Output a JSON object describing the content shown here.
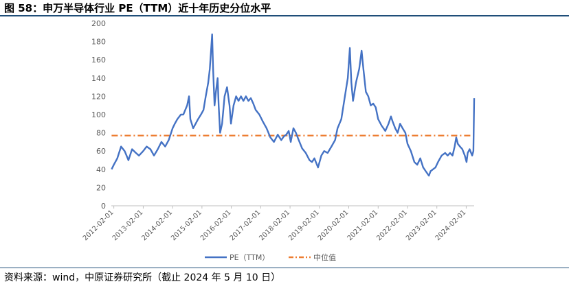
{
  "header": {
    "title": "图 58：申万半导体行业 PE（TTM）近十年历史分位水平"
  },
  "footer": {
    "source": "资料来源：wind，中原证券研究所（截止 2024 年 5 月 10 日）"
  },
  "colors": {
    "series_pe": "#4472c4",
    "series_median": "#ed7d31",
    "axis": "#bfbfbf",
    "text": "#595959",
    "title_rule": "#1f4e79"
  },
  "chart_data": {
    "type": "line",
    "title": "",
    "xlabel": "",
    "ylabel": "",
    "ylim": [
      0,
      200
    ],
    "yticks": [
      0,
      20,
      40,
      60,
      80,
      100,
      120,
      140,
      160,
      180,
      200
    ],
    "xlim": [
      "2012-01-01",
      "2024-05-10"
    ],
    "xticks": [
      "2012-02-01",
      "2013-02-01",
      "2014-02-01",
      "2015-02-01",
      "2016-02-01",
      "2017-02-01",
      "2018-02-01",
      "2019-02-01",
      "2020-02-01",
      "2021-02-01",
      "2022-02-01",
      "2023-02-01",
      "2024-02-01"
    ],
    "legend_position": "bottom",
    "grid": false,
    "series": [
      {
        "name": "PE（TTM）",
        "style": "solid",
        "points": [
          [
            "2012-01-04",
            40
          ],
          [
            "2012-02-01",
            45
          ],
          [
            "2012-03-15",
            52
          ],
          [
            "2012-05-01",
            65
          ],
          [
            "2012-06-15",
            60
          ],
          [
            "2012-08-01",
            50
          ],
          [
            "2012-09-15",
            62
          ],
          [
            "2012-11-01",
            58
          ],
          [
            "2012-12-10",
            55
          ],
          [
            "2013-02-01",
            60
          ],
          [
            "2013-03-15",
            65
          ],
          [
            "2013-05-01",
            62
          ],
          [
            "2013-06-15",
            55
          ],
          [
            "2013-08-01",
            62
          ],
          [
            "2013-09-15",
            70
          ],
          [
            "2013-11-01",
            65
          ],
          [
            "2013-12-15",
            72
          ],
          [
            "2014-02-01",
            85
          ],
          [
            "2014-03-01",
            90
          ],
          [
            "2014-04-01",
            95
          ],
          [
            "2014-05-15",
            100
          ],
          [
            "2014-06-15",
            100
          ],
          [
            "2014-08-01",
            110
          ],
          [
            "2014-08-25",
            120
          ],
          [
            "2014-09-10",
            95
          ],
          [
            "2014-10-15",
            85
          ],
          [
            "2014-11-15",
            90
          ],
          [
            "2014-12-15",
            95
          ],
          [
            "2015-01-20",
            100
          ],
          [
            "2015-02-20",
            105
          ],
          [
            "2015-03-20",
            120
          ],
          [
            "2015-04-20",
            135
          ],
          [
            "2015-05-10",
            150
          ],
          [
            "2015-05-25",
            170
          ],
          [
            "2015-06-08",
            188
          ],
          [
            "2015-06-20",
            150
          ],
          [
            "2015-07-08",
            110
          ],
          [
            "2015-07-25",
            125
          ],
          [
            "2015-08-15",
            140
          ],
          [
            "2015-08-28",
            110
          ],
          [
            "2015-09-15",
            80
          ],
          [
            "2015-10-10",
            90
          ],
          [
            "2015-11-10",
            120
          ],
          [
            "2015-12-10",
            130
          ],
          [
            "2016-01-10",
            110
          ],
          [
            "2016-01-28",
            90
          ],
          [
            "2016-03-01",
            110
          ],
          [
            "2016-04-01",
            120
          ],
          [
            "2016-05-01",
            115
          ],
          [
            "2016-06-01",
            120
          ],
          [
            "2016-07-01",
            115
          ],
          [
            "2016-08-01",
            120
          ],
          [
            "2016-09-01",
            115
          ],
          [
            "2016-10-01",
            118
          ],
          [
            "2016-11-01",
            112
          ],
          [
            "2016-12-01",
            105
          ],
          [
            "2017-01-15",
            100
          ],
          [
            "2017-03-01",
            92
          ],
          [
            "2017-04-15",
            85
          ],
          [
            "2017-06-01",
            75
          ],
          [
            "2017-07-15",
            70
          ],
          [
            "2017-09-01",
            78
          ],
          [
            "2017-10-15",
            72
          ],
          [
            "2017-11-15",
            76
          ],
          [
            "2017-12-15",
            78
          ],
          [
            "2018-01-15",
            82
          ],
          [
            "2018-02-10",
            70
          ],
          [
            "2018-03-15",
            85
          ],
          [
            "2018-04-15",
            80
          ],
          [
            "2018-05-20",
            72
          ],
          [
            "2018-07-01",
            63
          ],
          [
            "2018-08-15",
            58
          ],
          [
            "2018-10-01",
            50
          ],
          [
            "2018-11-01",
            48
          ],
          [
            "2018-12-01",
            52
          ],
          [
            "2019-01-15",
            42
          ],
          [
            "2019-02-25",
            55
          ],
          [
            "2019-04-01",
            60
          ],
          [
            "2019-05-15",
            58
          ],
          [
            "2019-07-01",
            65
          ],
          [
            "2019-08-15",
            72
          ],
          [
            "2019-09-15",
            85
          ],
          [
            "2019-11-01",
            95
          ],
          [
            "2019-12-15",
            120
          ],
          [
            "2020-01-20",
            140
          ],
          [
            "2020-02-15",
            173
          ],
          [
            "2020-03-05",
            135
          ],
          [
            "2020-03-25",
            115
          ],
          [
            "2020-05-01",
            135
          ],
          [
            "2020-06-10",
            150
          ],
          [
            "2020-07-10",
            170
          ],
          [
            "2020-08-01",
            150
          ],
          [
            "2020-09-01",
            125
          ],
          [
            "2020-10-01",
            120
          ],
          [
            "2020-11-01",
            110
          ],
          [
            "2020-12-01",
            112
          ],
          [
            "2021-01-01",
            108
          ],
          [
            "2021-02-01",
            95
          ],
          [
            "2021-03-15",
            88
          ],
          [
            "2021-05-01",
            82
          ],
          [
            "2021-06-10",
            90
          ],
          [
            "2021-07-10",
            98
          ],
          [
            "2021-08-01",
            92
          ],
          [
            "2021-09-01",
            85
          ],
          [
            "2021-10-01",
            80
          ],
          [
            "2021-11-01",
            90
          ],
          [
            "2021-12-01",
            85
          ],
          [
            "2022-01-05",
            80
          ],
          [
            "2022-02-01",
            68
          ],
          [
            "2022-03-15",
            60
          ],
          [
            "2022-04-27",
            48
          ],
          [
            "2022-06-01",
            45
          ],
          [
            "2022-07-10",
            52
          ],
          [
            "2022-08-15",
            42
          ],
          [
            "2022-09-15",
            38
          ],
          [
            "2022-10-25",
            33
          ],
          [
            "2022-11-15",
            38
          ],
          [
            "2022-12-15",
            40
          ],
          [
            "2023-01-15",
            42
          ],
          [
            "2023-02-15",
            48
          ],
          [
            "2023-04-01",
            55
          ],
          [
            "2023-05-15",
            58
          ],
          [
            "2023-06-15",
            55
          ],
          [
            "2023-07-15",
            58
          ],
          [
            "2023-08-15",
            55
          ],
          [
            "2023-09-10",
            65
          ],
          [
            "2023-09-30",
            75
          ],
          [
            "2023-10-20",
            68
          ],
          [
            "2023-11-15",
            65
          ],
          [
            "2023-12-15",
            62
          ],
          [
            "2024-01-15",
            55
          ],
          [
            "2024-02-05",
            48
          ],
          [
            "2024-02-20",
            58
          ],
          [
            "2024-03-15",
            62
          ],
          [
            "2024-04-15",
            55
          ],
          [
            "2024-05-01",
            60
          ],
          [
            "2024-05-10",
            118
          ]
        ]
      },
      {
        "name": "中位值",
        "style": "dash-dot",
        "points": [
          [
            "2012-01-04",
            77
          ],
          [
            "2024-05-10",
            77
          ]
        ]
      }
    ]
  }
}
